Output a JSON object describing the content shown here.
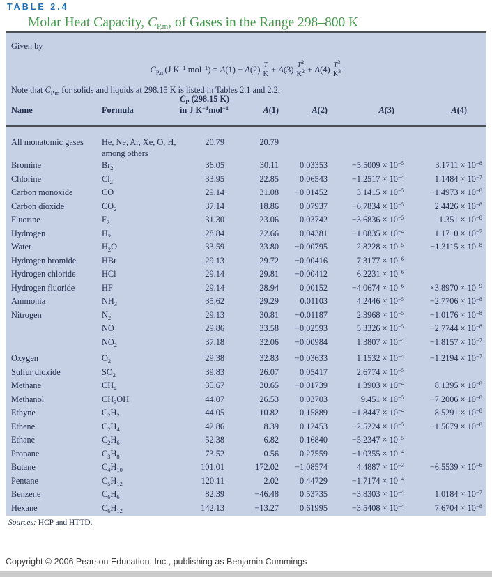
{
  "header": {
    "table_label": "TABLE 2.4",
    "title": "Molar Heat Capacity, *{C}_{P,m}, of Gases in the Range 298–800 K"
  },
  "panel": {
    "given_by": "Given by",
    "formula": {
      "lhs": "*{C}_{P,m}(J K^{−1} mol^{−1}) = *{A}(1) + *{A}(2)",
      "frac1_num": "*{T}",
      "frac1_den": "K",
      "op2": "+ *{A}(3)",
      "frac2_num": "*{T}^{2}",
      "frac2_den": "K^{2}",
      "op3": "+ *{A}(4)",
      "frac3_num": "*{T}^{3}",
      "frac3_den": "K^{3}"
    },
    "note": "Note that *{C}_{P,m} for solids and liquids at 298.15 K is listed in Tables 2.1 and 2.2.",
    "columns": {
      "name": "Name",
      "formula": "Formula",
      "cp_line1": "*{C}_{P} (298.15 K)",
      "cp_line2": "in J K^{−1}mol^{−1}",
      "a1": "*{A}(1)",
      "a2": "*{A}(2)",
      "a3": "*{A}(3)",
      "a4": "*{A}(4)"
    },
    "rows": [
      {
        "name": "All monatomic gases",
        "formula": "He, Ne, Ar, Xe, O, H,\namong others",
        "cp": "20.79",
        "a1": "20.79",
        "a2": "",
        "a3": "",
        "a4": "",
        "multi": true
      },
      {
        "name": "Bromine",
        "formula": "Br_{2}",
        "cp": "36.05",
        "a1": "30.11",
        "a2": "0.03353",
        "a3": "−5.5009 × 10^{−5}",
        "a4": "3.1711 × 10^{−8}"
      },
      {
        "name": "Chlorine",
        "formula": "Cl_{2}",
        "cp": "33.95",
        "a1": "22.85",
        "a2": "0.06543",
        "a3": "−1.2517 × 10^{−4}",
        "a4": "1.1484 × 10^{−7}"
      },
      {
        "name": "Carbon monoxide",
        "formula": "CO",
        "cp": "29.14",
        "a1": "31.08",
        "a2": "−0.01452",
        "a3": "3.1415 × 10^{−5}",
        "a4": "−1.4973 × 10^{−8}"
      },
      {
        "name": "Carbon dioxide",
        "formula": "CO_{2}",
        "cp": "37.14",
        "a1": "18.86",
        "a2": "0.07937",
        "a3": "−6.7834 × 10^{−5}",
        "a4": "2.4426 × 10^{−8}"
      },
      {
        "name": "Fluorine",
        "formula": "F_{2}",
        "cp": "31.30",
        "a1": "23.06",
        "a2": "0.03742",
        "a3": "−3.6836 × 10^{−5}",
        "a4": "1.351 × 10^{−8}"
      },
      {
        "name": "Hydrogen",
        "formula": "H_{2}",
        "cp": "28.84",
        "a1": "22.66",
        "a2": "0.04381",
        "a3": "−1.0835 × 10^{−4}",
        "a4": "1.1710 × 10^{−7}"
      },
      {
        "name": "Water",
        "formula": "H_{2}O",
        "cp": "33.59",
        "a1": "33.80",
        "a2": "−0.00795",
        "a3": "2.8228 × 10^{−5}",
        "a4": "−1.3115 × 10^{−8}"
      },
      {
        "name": "Hydrogen bromide",
        "formula": "HBr",
        "cp": "29.13",
        "a1": "29.72",
        "a2": "−0.00416",
        "a3": "7.3177 × 10^{−6}",
        "a4": ""
      },
      {
        "name": "Hydrogen chloride",
        "formula": "HCl",
        "cp": "29.14",
        "a1": "29.81",
        "a2": "−0.00412",
        "a3": "6.2231 × 10^{−6}",
        "a4": ""
      },
      {
        "name": "Hydrogen fluoride",
        "formula": "HF",
        "cp": "29.14",
        "a1": "28.94",
        "a2": "0.00152",
        "a3": "−4.0674 × 10^{−6}",
        "a4": "×3.8970 × 10^{−9}"
      },
      {
        "name": "Ammonia",
        "formula": "NH_{3}",
        "cp": "35.62",
        "a1": "29.29",
        "a2": "0.01103",
        "a3": "4.2446 × 10^{−5}",
        "a4": "−2.7706 × 10^{−8}"
      },
      {
        "name": "Nitrogen",
        "formula": "N_{2}",
        "cp": "29.13",
        "a1": "30.81",
        "a2": "−0.01187",
        "a3": "2.3968 × 10^{−5}",
        "a4": "−1.0176 × 10^{−8}"
      },
      {
        "name": "",
        "formula": "NO",
        "cp": "29.86",
        "a1": "33.58",
        "a2": "−0.02593",
        "a3": "5.3326 × 10^{−5}",
        "a4": "−2.7744 × 10^{−8}"
      },
      {
        "name": "",
        "formula": "NO_{2}",
        "cp": "37.18",
        "a1": "32.06",
        "a2": "−0.00984",
        "a3": "1.3807 × 10^{−4}",
        "a4": "−1.8157 × 10^{−7}"
      },
      {
        "name": "Oxygen",
        "formula": "O_{2}",
        "cp": "29.38",
        "a1": "32.83",
        "a2": "−0.03633",
        "a3": "1.1532 × 10^{−4}",
        "a4": "−1.2194 × 10^{−7}",
        "gap": true
      },
      {
        "name": "Sulfur dioxide",
        "formula": "SO_{2}",
        "cp": "39.83",
        "a1": "26.07",
        "a2": "0.05417",
        "a3": "2.6774 × 10^{−5}",
        "a4": ""
      },
      {
        "name": "Methane",
        "formula": "CH_{4}",
        "cp": "35.67",
        "a1": "30.65",
        "a2": "−0.01739",
        "a3": "1.3903 × 10^{−4}",
        "a4": "8.1395 × 10^{−8}"
      },
      {
        "name": "Methanol",
        "formula": "CH_{3}OH",
        "cp": "44.07",
        "a1": "26.53",
        "a2": "0.03703",
        "a3": "9.451 × 10^{−5}",
        "a4": "−7.2006 × 10^{−8}"
      },
      {
        "name": "Ethyne",
        "formula": "C_{2}H_{2}",
        "cp": "44.05",
        "a1": "10.82",
        "a2": "0.15889",
        "a3": "−1.8447 × 10^{−4}",
        "a4": "8.5291 × 10^{−8}"
      },
      {
        "name": "Ethene",
        "formula": "C_{2}H_{4}",
        "cp": "42.86",
        "a1": "8.39",
        "a2": "0.12453",
        "a3": "−2.5224 × 10^{−5}",
        "a4": "−1.5679 × 10^{−8}"
      },
      {
        "name": "Ethane",
        "formula": "C_{2}H_{6}",
        "cp": "52.38",
        "a1": "6.82",
        "a2": "0.16840",
        "a3": "−5.2347 × 10^{−5}",
        "a4": ""
      },
      {
        "name": "Propane",
        "formula": "C_{3}H_{8}",
        "cp": "73.52",
        "a1": "0.56",
        "a2": "0.27559",
        "a3": "−1.0355 × 10^{−4}",
        "a4": ""
      },
      {
        "name": "Butane",
        "formula": "C_{4}H_{10}",
        "cp": "101.01",
        "a1": "172.02",
        "a2": "−1.08574",
        "a3": "4.4887 × 10^{−3}",
        "a4": "−6.5539 × 10^{−6}"
      },
      {
        "name": "Pentane",
        "formula": "C_{5}H_{12}",
        "cp": "120.11",
        "a1": "2.02",
        "a2": "0.44729",
        "a3": "−1.7174 × 10^{−4}",
        "a4": ""
      },
      {
        "name": "Benzene",
        "formula": "C_{6}H_{6}",
        "cp": "82.39",
        "a1": "−46.48",
        "a2": "0.53735",
        "a3": "−3.8303 × 10^{−4}",
        "a4": "1.0184 × 10^{−7}"
      },
      {
        "name": "Hexane",
        "formula": "C_{6}H_{12}",
        "cp": "142.13",
        "a1": "−13.27",
        "a2": "0.61995",
        "a3": "−3.5408 × 10^{−4}",
        "a4": "7.6704 × 10^{−8}"
      }
    ],
    "sources": "*{Sources:} HCP and HTTD."
  },
  "footer": {
    "copyright": "Copyright © 2006 Pearson Education, Inc., publishing as Benjamin Cummings"
  },
  "colors": {
    "panel_bg": "#c7d1e6",
    "label_blue": "#1e70bb",
    "title_green": "#42994c",
    "rule_dark": "#4a5056",
    "text_navy": "#22304e"
  }
}
